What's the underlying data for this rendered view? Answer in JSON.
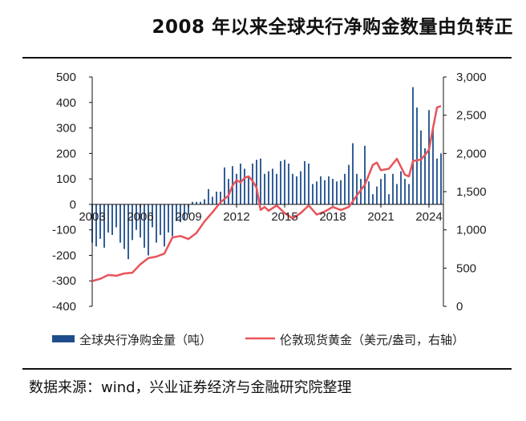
{
  "title": "2008 年以来全球央行净购金数量由负转正",
  "source": "数据来源：wind，兴业证券经济与金融研究院整理",
  "chart_data": {
    "type": "bar+line",
    "x_ticks": [
      "2003",
      "2006",
      "2009",
      "2012",
      "2015",
      "2018",
      "2021",
      "2024"
    ],
    "y_left": {
      "ylim": [
        -400,
        500
      ],
      "ticks": [
        -400,
        -300,
        -200,
        -100,
        0,
        100,
        200,
        300,
        400,
        500
      ]
    },
    "y_right": {
      "ylim": [
        0,
        3000
      ],
      "ticks": [
        "0",
        "500",
        "1,000",
        "1,500",
        "2,000",
        "2,500",
        "3,000"
      ]
    },
    "series": [
      {
        "name": "全球央行净购金量（吨）",
        "type": "bar",
        "axis": "left",
        "color": "#1f4e8c",
        "x": [
          2003.0,
          2003.25,
          2003.5,
          2003.75,
          2004.0,
          2004.25,
          2004.5,
          2004.75,
          2005.0,
          2005.25,
          2005.5,
          2005.75,
          2006.0,
          2006.25,
          2006.5,
          2006.75,
          2007.0,
          2007.25,
          2007.5,
          2007.75,
          2008.0,
          2008.25,
          2008.5,
          2008.75,
          2009.0,
          2009.25,
          2009.5,
          2009.75,
          2010.0,
          2010.25,
          2010.5,
          2010.75,
          2011.0,
          2011.25,
          2011.5,
          2011.75,
          2012.0,
          2012.25,
          2012.5,
          2012.75,
          2013.0,
          2013.25,
          2013.5,
          2013.75,
          2014.0,
          2014.25,
          2014.5,
          2014.75,
          2015.0,
          2015.25,
          2015.5,
          2015.75,
          2016.0,
          2016.25,
          2016.5,
          2016.75,
          2017.0,
          2017.25,
          2017.5,
          2017.75,
          2018.0,
          2018.25,
          2018.5,
          2018.75,
          2019.0,
          2019.25,
          2019.5,
          2019.75,
          2020.0,
          2020.25,
          2020.5,
          2020.75,
          2021.0,
          2021.25,
          2021.5,
          2021.75,
          2022.0,
          2022.25,
          2022.5,
          2022.75,
          2023.0,
          2023.25,
          2023.5,
          2023.75,
          2024.0,
          2024.25,
          2024.5,
          2024.75
        ],
        "values": [
          -150,
          -165,
          -135,
          -170,
          -110,
          -120,
          -90,
          -150,
          -175,
          -215,
          -140,
          -100,
          -130,
          -170,
          -200,
          -90,
          -150,
          -120,
          -165,
          -110,
          -125,
          -65,
          -70,
          -60,
          -40,
          10,
          10,
          10,
          20,
          60,
          30,
          50,
          50,
          145,
          100,
          150,
          120,
          160,
          140,
          110,
          160,
          175,
          180,
          120,
          130,
          140,
          120,
          170,
          175,
          160,
          120,
          110,
          130,
          170,
          160,
          80,
          90,
          110,
          95,
          110,
          100,
          90,
          95,
          120,
          155,
          240,
          120,
          100,
          230,
          90,
          40,
          70,
          100,
          120,
          40,
          120,
          80,
          130,
          100,
          80,
          460,
          380,
          290,
          220,
          370,
          300,
          180,
          200
        ]
      },
      {
        "name": "伦敦现货黄金（美元/盎司，右轴）",
        "type": "line",
        "axis": "right",
        "color": "#e8545a",
        "x": [
          2003.0,
          2003.5,
          2004.0,
          2004.5,
          2005.0,
          2005.5,
          2006.0,
          2006.5,
          2007.0,
          2007.5,
          2008.0,
          2008.5,
          2009.0,
          2009.5,
          2010.0,
          2010.5,
          2011.0,
          2011.5,
          2011.75,
          2012.0,
          2012.25,
          2012.5,
          2012.75,
          2013.0,
          2013.25,
          2013.5,
          2013.75,
          2014.0,
          2014.5,
          2015.0,
          2015.5,
          2016.0,
          2016.5,
          2017.0,
          2017.5,
          2018.0,
          2018.5,
          2019.0,
          2019.5,
          2020.0,
          2020.5,
          2020.75,
          2021.0,
          2021.5,
          2022.0,
          2022.5,
          2022.75,
          2023.0,
          2023.5,
          2023.75,
          2024.0,
          2024.25,
          2024.5,
          2024.75
        ],
        "values": [
          330,
          360,
          410,
          400,
          430,
          440,
          550,
          630,
          650,
          690,
          900,
          920,
          880,
          960,
          1110,
          1230,
          1360,
          1450,
          1580,
          1650,
          1620,
          1680,
          1700,
          1640,
          1550,
          1260,
          1300,
          1250,
          1320,
          1220,
          1150,
          1220,
          1320,
          1200,
          1240,
          1300,
          1260,
          1300,
          1450,
          1590,
          1850,
          1880,
          1780,
          1800,
          1930,
          1720,
          1700,
          1900,
          1920,
          1980,
          2050,
          2330,
          2600,
          2620
        ]
      }
    ],
    "legend": {
      "placement": "bottom"
    }
  }
}
